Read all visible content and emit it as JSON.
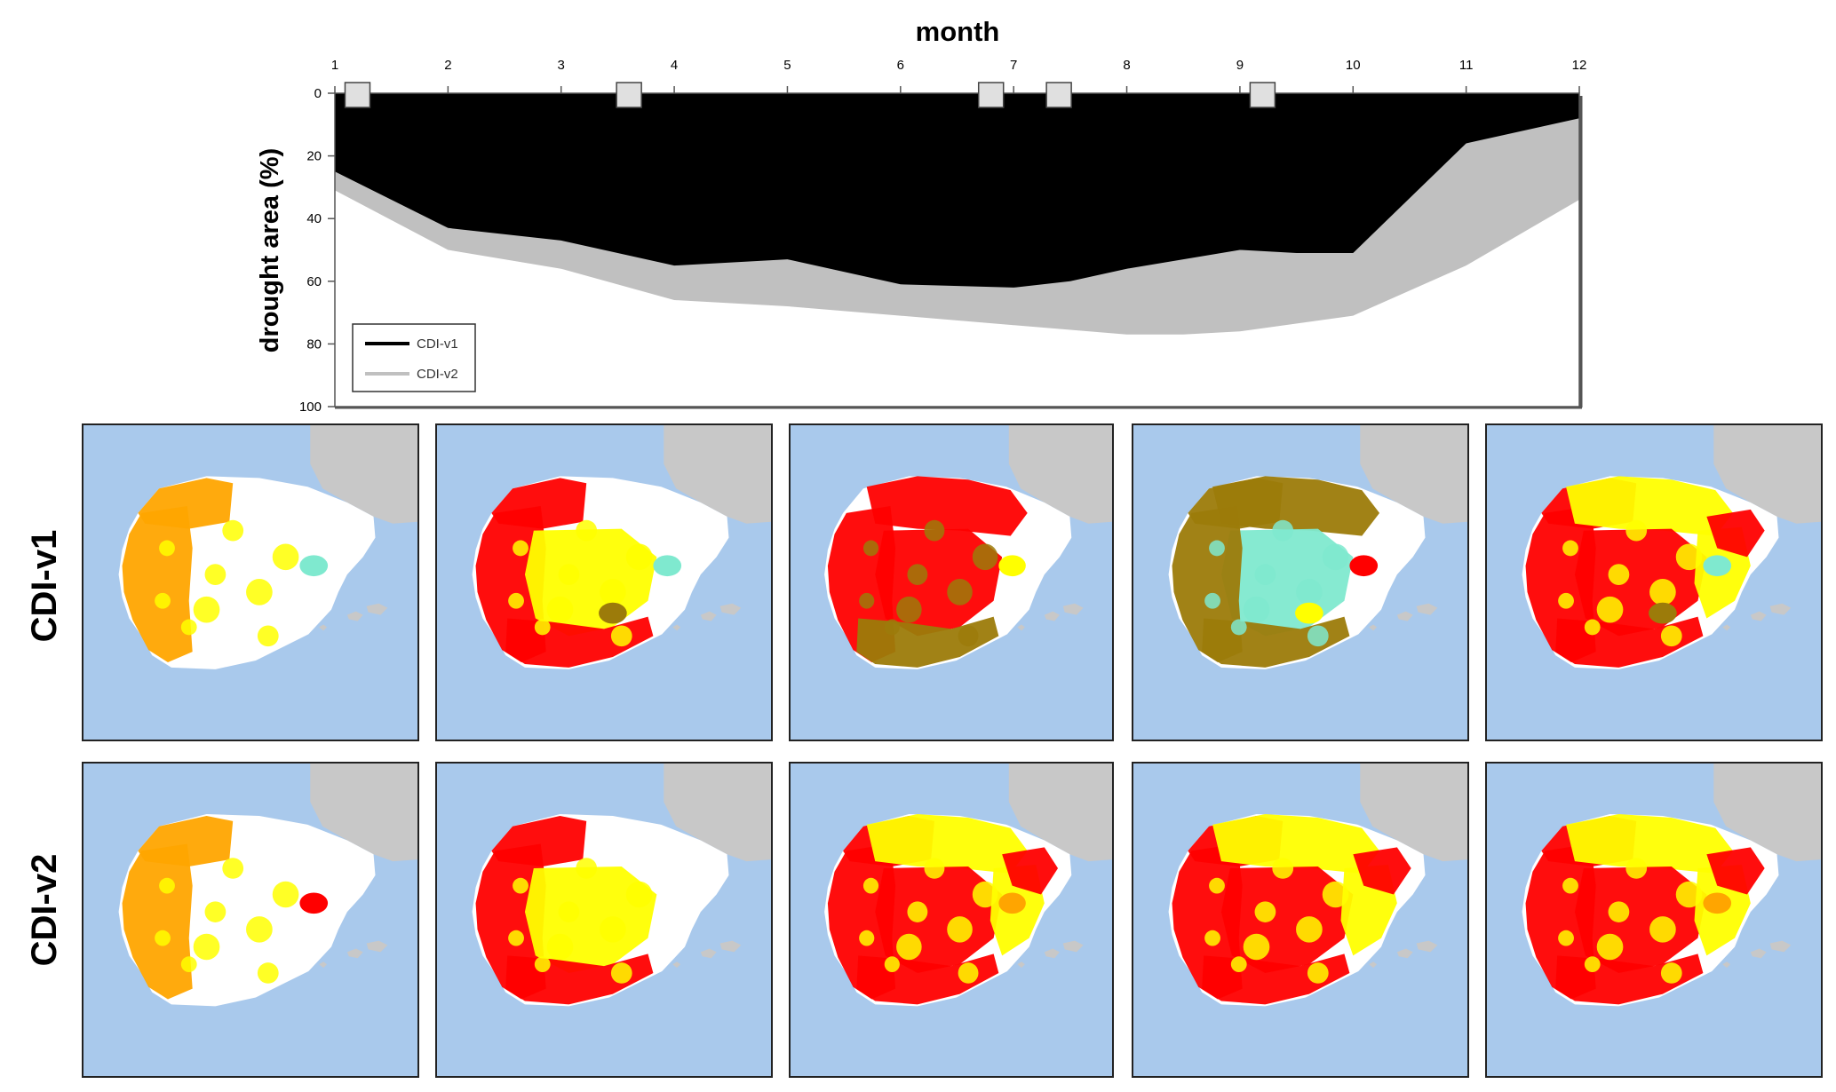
{
  "chart_data": {
    "type": "area",
    "title": "month",
    "xlabel": "month",
    "ylabel": "drought area (%)",
    "x_ticks": [
      1,
      2,
      3,
      4,
      5,
      6,
      7,
      8,
      9,
      10,
      11,
      12
    ],
    "y_ticks": [
      0,
      20,
      40,
      60,
      80,
      100
    ],
    "xlim": [
      1,
      12
    ],
    "ylim": [
      0,
      100
    ],
    "y_inverted": true,
    "grid": false,
    "legend_position": "bottom-left",
    "series": [
      {
        "name": "CDI-v1",
        "color": "#000000",
        "x": [
          1,
          2,
          3,
          3.5,
          4,
          5,
          6,
          7,
          7.5,
          8,
          9,
          9.5,
          10,
          11,
          12
        ],
        "values": [
          25,
          43,
          47,
          51,
          55,
          53,
          61,
          62,
          60,
          56,
          50,
          51,
          51,
          16,
          8
        ]
      },
      {
        "name": "CDI-v2",
        "color": "#c0c0c0",
        "x": [
          1,
          2,
          3,
          4,
          5,
          6,
          7,
          8,
          8.5,
          9,
          10,
          11,
          12
        ],
        "values": [
          31,
          50,
          56,
          66,
          68,
          71,
          74,
          77,
          77,
          76,
          71,
          55,
          34
        ]
      }
    ],
    "highlighted_months": [
      1.2,
      3.6,
      6.8,
      7.4,
      9.2
    ],
    "marker_color": "#e0e0e0"
  },
  "row_labels": [
    "CDI-v1",
    "CDI-v2"
  ],
  "map_colors": {
    "sea": "#a9c9ec",
    "france": "#c8c8c8",
    "land": "#ffffff",
    "red": "#ff0000",
    "orange": "#ffa500",
    "yellow": "#ffff00",
    "olive": "#9c7b0a",
    "aquamarine": "#7fe9cf"
  },
  "maps": {
    "rows": [
      {
        "name": "CDI-v1",
        "panels": [
          {
            "month": 1.2,
            "dominant": "orange",
            "secondary": "yellow",
            "extent": "west",
            "extras": [
              "aquamarine"
            ]
          },
          {
            "month": 3.6,
            "dominant": "red",
            "secondary": "yellow",
            "extent": "west-and-center",
            "extras": [
              "aquamarine",
              "olive"
            ]
          },
          {
            "month": 6.8,
            "dominant": "red",
            "secondary": "olive",
            "extent": "south-west-center",
            "extras": [
              "yellow"
            ]
          },
          {
            "month": 7.4,
            "dominant": "olive",
            "secondary": "aquamarine",
            "extent": "north-and-south",
            "extras": [
              "red",
              "yellow"
            ]
          },
          {
            "month": 9.2,
            "dominant": "red",
            "secondary": "yellow",
            "extent": "most",
            "extras": [
              "aquamarine",
              "olive"
            ]
          }
        ]
      },
      {
        "name": "CDI-v2",
        "panels": [
          {
            "month": 1.2,
            "dominant": "orange",
            "secondary": "yellow",
            "extent": "west",
            "extras": [
              "red"
            ]
          },
          {
            "month": 3.6,
            "dominant": "red",
            "secondary": "yellow",
            "extent": "west-and-center",
            "extras": []
          },
          {
            "month": 6.8,
            "dominant": "red",
            "secondary": "yellow",
            "extent": "most",
            "extras": [
              "orange"
            ]
          },
          {
            "month": 7.4,
            "dominant": "red",
            "secondary": "yellow",
            "extent": "most",
            "extras": []
          },
          {
            "month": 9.2,
            "dominant": "red",
            "secondary": "yellow",
            "extent": "most",
            "extras": [
              "orange"
            ]
          }
        ]
      }
    ]
  }
}
